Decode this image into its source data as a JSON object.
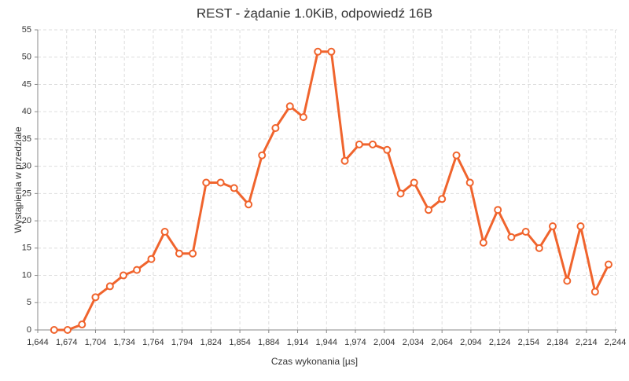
{
  "chart_data": {
    "type": "line",
    "title": "REST - żądanie 1.0KiB, odpowiedź 16B",
    "x_label": "Czas wykonania [µs]",
    "y_label": "Wystąpienia w przedziale",
    "x": [
      1661,
      1675,
      1690,
      1704,
      1719,
      1733,
      1747,
      1762,
      1776,
      1791,
      1805,
      1819,
      1834,
      1848,
      1863,
      1877,
      1891,
      1906,
      1920,
      1935,
      1949,
      1963,
      1978,
      1992,
      2007,
      2021,
      2035,
      2050,
      2064,
      2079,
      2093,
      2107,
      2122,
      2136,
      2151,
      2165,
      2179,
      2194,
      2208,
      2223,
      2237
    ],
    "series": [
      {
        "name": "Wystąpienia",
        "color": "#f0642d",
        "values": [
          0,
          0,
          1,
          6,
          8,
          10,
          11,
          13,
          18,
          14,
          14,
          27,
          27,
          26,
          23,
          32,
          37,
          41,
          39,
          51,
          51,
          31,
          34,
          34,
          33,
          25,
          27,
          22,
          24,
          32,
          27,
          16,
          22,
          17,
          18,
          15,
          19,
          9,
          19,
          7,
          12
        ]
      }
    ],
    "xlim": [
      1644,
      2246
    ],
    "xticks": [
      {
        "value": 1644,
        "label": "1,644"
      },
      {
        "value": 1674,
        "label": "1,674"
      },
      {
        "value": 1704,
        "label": "1,704"
      },
      {
        "value": 1734,
        "label": "1,734"
      },
      {
        "value": 1764,
        "label": "1,764"
      },
      {
        "value": 1794,
        "label": "1,794"
      },
      {
        "value": 1824,
        "label": "1,824"
      },
      {
        "value": 1854,
        "label": "1,854"
      },
      {
        "value": 1884,
        "label": "1,884"
      },
      {
        "value": 1914,
        "label": "1,914"
      },
      {
        "value": 1944,
        "label": "1,944"
      },
      {
        "value": 1974,
        "label": "1,974"
      },
      {
        "value": 2004,
        "label": "2,004"
      },
      {
        "value": 2034,
        "label": "2,034"
      },
      {
        "value": 2064,
        "label": "2,064"
      },
      {
        "value": 2094,
        "label": "2,094"
      },
      {
        "value": 2124,
        "label": "2,124"
      },
      {
        "value": 2154,
        "label": "2,154"
      },
      {
        "value": 2184,
        "label": "2,184"
      },
      {
        "value": 2214,
        "label": "2,214"
      },
      {
        "value": 2244,
        "label": "2,244"
      }
    ],
    "ylim": [
      0,
      55
    ],
    "yticks": [
      0,
      5,
      10,
      15,
      20,
      25,
      30,
      35,
      40,
      45,
      50,
      55
    ],
    "grid": true
  }
}
